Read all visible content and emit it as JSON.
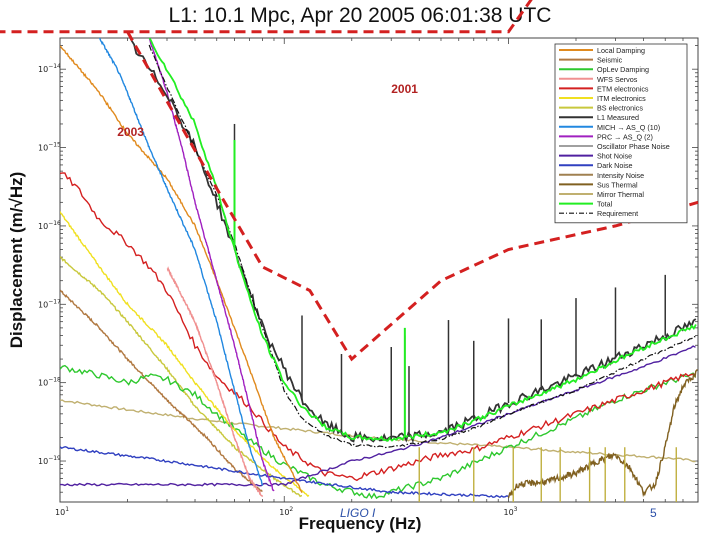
{
  "chart_data": {
    "type": "line",
    "title": "L1: 10.1 Mpc, Apr 20 2005 06:01:38 UTC",
    "xlabel": "Frequency (Hz)",
    "ylabel": "Displacement (m/√Hz)",
    "xscale": "log",
    "yscale": "log",
    "xlim": [
      10,
      7000
    ],
    "ylim": [
      3e-20,
      2.5e-14
    ],
    "x_ticks": [
      {
        "value": 10,
        "base": "10",
        "exp": "1"
      },
      {
        "value": 100,
        "base": "10",
        "exp": "2"
      },
      {
        "value": 1000,
        "base": "10",
        "exp": "3"
      }
    ],
    "y_ticks": [
      {
        "value": 1e-14,
        "base": "10",
        "exp": "−14"
      },
      {
        "value": 1e-15,
        "base": "10",
        "exp": "−15"
      },
      {
        "value": 1e-16,
        "base": "10",
        "exp": "−16"
      },
      {
        "value": 1e-17,
        "base": "10",
        "exp": "−17"
      },
      {
        "value": 1e-18,
        "base": "10",
        "exp": "−18"
      },
      {
        "value": 1e-19,
        "base": "10",
        "exp": "−19"
      }
    ],
    "legend_position": "top-right",
    "series": [
      {
        "name": "Local Damping",
        "color": "#e08a1e",
        "style": "solid",
        "points": [
          [
            10,
            2e-14
          ],
          [
            15,
            5e-15
          ],
          [
            20,
            1.5e-15
          ],
          [
            30,
            4e-16
          ],
          [
            40,
            1e-16
          ],
          [
            50,
            2e-17
          ],
          [
            60,
            5e-18
          ],
          [
            70,
            1.5e-18
          ],
          [
            90,
            2e-19
          ],
          [
            120,
            4e-20
          ]
        ]
      },
      {
        "name": "Seismic",
        "color": "#b07840",
        "style": "solid",
        "points": [
          [
            10,
            1.5e-17
          ],
          [
            15,
            5e-18
          ],
          [
            20,
            2e-18
          ],
          [
            30,
            6e-19
          ],
          [
            45,
            2e-19
          ],
          [
            60,
            8e-20
          ],
          [
            80,
            4e-20
          ]
        ]
      },
      {
        "name": "OpLev Damping",
        "color": "#2ec82e",
        "style": "solid",
        "points": [
          [
            10,
            1.6e-18
          ],
          [
            14,
            1.3e-18
          ],
          [
            20,
            1e-18
          ],
          [
            25,
            1.2e-18
          ],
          [
            30,
            1.1e-18
          ],
          [
            40,
            7e-19
          ],
          [
            50,
            4e-19
          ],
          [
            70,
            1.8e-19
          ],
          [
            100,
            9e-20
          ],
          [
            150,
            5e-20
          ],
          [
            250,
            3.5e-20
          ],
          [
            500,
            6e-20
          ],
          [
            1000,
            1.5e-19
          ],
          [
            2000,
            3.5e-19
          ],
          [
            3000,
            6e-19
          ],
          [
            5000,
            1e-18
          ],
          [
            7000,
            1.3e-18
          ]
        ]
      },
      {
        "name": "WFS Servos",
        "color": "#f09090",
        "style": "solid",
        "points": [
          [
            30,
            3e-17
          ],
          [
            40,
            6e-18
          ],
          [
            50,
            1e-18
          ],
          [
            60,
            2e-19
          ],
          [
            70,
            6e-20
          ],
          [
            80,
            3.5e-20
          ]
        ]
      },
      {
        "name": "ETM electronics",
        "color": "#d42020",
        "style": "solid",
        "points": [
          [
            10,
            5e-16
          ],
          [
            12,
            3e-16
          ],
          [
            15,
            1.2e-16
          ],
          [
            20,
            6e-17
          ],
          [
            25,
            3e-17
          ],
          [
            30,
            1.5e-17
          ],
          [
            40,
            3e-18
          ],
          [
            50,
            1.2e-18
          ],
          [
            70,
            5e-19
          ],
          [
            100,
            1.5e-19
          ],
          [
            150,
            7e-20
          ],
          [
            200,
            6e-20
          ],
          [
            300,
            8e-20
          ],
          [
            500,
            1.2e-19
          ],
          [
            700,
            1.4e-19
          ],
          [
            1000,
            2e-19
          ],
          [
            2000,
            4e-19
          ],
          [
            4000,
            8e-19
          ],
          [
            7000,
            1.4e-18
          ]
        ]
      },
      {
        "name": "ITM electronics",
        "color": "#f0e020",
        "style": "solid",
        "points": [
          [
            10,
            1.5e-16
          ],
          [
            15,
            3e-17
          ],
          [
            20,
            1e-17
          ],
          [
            30,
            3e-18
          ],
          [
            40,
            1e-18
          ],
          [
            60,
            2.5e-19
          ],
          [
            90,
            8e-20
          ],
          [
            130,
            3.5e-20
          ]
        ]
      },
      {
        "name": "BS electronics",
        "color": "#c8c83c",
        "style": "solid",
        "points": [
          [
            10,
            4e-17
          ],
          [
            15,
            1.5e-17
          ],
          [
            20,
            6e-18
          ],
          [
            30,
            1.5e-18
          ],
          [
            40,
            5e-19
          ],
          [
            60,
            1.5e-19
          ],
          [
            90,
            6e-20
          ],
          [
            120,
            3.5e-20
          ]
        ]
      },
      {
        "name": "L1 Measured",
        "color": "#333333",
        "style": "solid",
        "points": [
          [
            20,
            2.5e-14
          ],
          [
            25,
            1e-14
          ],
          [
            30,
            5e-15
          ],
          [
            40,
            1e-15
          ],
          [
            50,
            2e-16
          ],
          [
            60,
            5e-17
          ],
          [
            70,
            1.5e-17
          ],
          [
            80,
            5e-18
          ],
          [
            100,
            1.5e-18
          ],
          [
            120,
            6e-19
          ],
          [
            150,
            3e-19
          ],
          [
            200,
            2e-19
          ],
          [
            300,
            1.9e-19
          ],
          [
            500,
            2.3e-19
          ],
          [
            800,
            4e-19
          ],
          [
            1000,
            5.5e-19
          ],
          [
            2000,
            1.2e-18
          ],
          [
            4000,
            3e-18
          ],
          [
            7000,
            6e-18
          ]
        ]
      },
      {
        "name": "MICH → AS_Q (10)",
        "color": "#2288e0",
        "style": "solid",
        "points": [
          [
            15,
            2.5e-14
          ],
          [
            18,
            1e-14
          ],
          [
            20,
            5e-15
          ],
          [
            25,
            1e-15
          ],
          [
            30,
            3e-16
          ],
          [
            40,
            5e-17
          ],
          [
            50,
            6e-18
          ],
          [
            60,
            8e-19
          ],
          [
            70,
            1.5e-19
          ],
          [
            80,
            5e-20
          ]
        ]
      },
      {
        "name": "PRC → AS_Q (2)",
        "color": "#a020c0",
        "style": "solid",
        "points": [
          [
            25,
            2.5e-14
          ],
          [
            30,
            5e-15
          ],
          [
            35,
            1e-15
          ],
          [
            40,
            2e-16
          ],
          [
            50,
            2e-17
          ],
          [
            60,
            3e-18
          ],
          [
            70,
            5e-19
          ],
          [
            80,
            1e-19
          ],
          [
            90,
            4e-20
          ]
        ]
      },
      {
        "name": "Shot Noise",
        "color": "#5020a0",
        "style": "solid",
        "points": [
          [
            10,
            5e-20
          ],
          [
            50,
            5e-20
          ],
          [
            100,
            5e-20
          ],
          [
            200,
            1e-19
          ],
          [
            300,
            1.3e-19
          ],
          [
            500,
            2e-19
          ],
          [
            1000,
            4e-19
          ],
          [
            2000,
            8e-19
          ],
          [
            4000,
            1.6e-18
          ],
          [
            7000,
            3e-18
          ]
        ]
      },
      {
        "name": "Dark Noise",
        "color": "#3040c0",
        "style": "solid",
        "points": [
          [
            10,
            1.5e-19
          ],
          [
            30,
            1e-19
          ],
          [
            100,
            6e-20
          ],
          [
            300,
            4e-20
          ],
          [
            1000,
            3.5e-20
          ]
        ]
      },
      {
        "name": "Sus Thermal",
        "color": "#806020",
        "style": "solid",
        "points": [
          [
            1000,
            3.5e-20
          ],
          [
            1100,
            5e-20
          ],
          [
            1500,
            5.5e-20
          ],
          [
            2000,
            7e-20
          ],
          [
            2500,
            1e-19
          ],
          [
            3000,
            1.2e-19
          ],
          [
            3500,
            8e-20
          ],
          [
            4000,
            4e-20
          ],
          [
            4500,
            5e-20
          ],
          [
            5000,
            1.5e-19
          ],
          [
            5500,
            5e-19
          ],
          [
            6000,
            9e-19
          ],
          [
            7000,
            1.4e-18
          ]
        ]
      },
      {
        "name": "Mirror Thermal",
        "color": "#c0b070",
        "style": "solid",
        "points": [
          [
            10,
            6e-19
          ],
          [
            20,
            4.5e-19
          ],
          [
            50,
            3.2e-19
          ],
          [
            100,
            2.6e-19
          ],
          [
            200,
            2.1e-19
          ],
          [
            500,
            1.7e-19
          ],
          [
            1000,
            1.5e-19
          ],
          [
            2000,
            1.3e-19
          ],
          [
            5000,
            1.1e-19
          ],
          [
            7000,
            1e-19
          ]
        ]
      },
      {
        "name": "Total",
        "color": "#22ee22",
        "style": "solid",
        "points": [
          [
            25,
            2.5e-14
          ],
          [
            30,
            1e-14
          ],
          [
            40,
            2e-15
          ],
          [
            50,
            3e-16
          ],
          [
            60,
            5e-17
          ],
          [
            70,
            1.2e-17
          ],
          [
            80,
            4e-18
          ],
          [
            100,
            1e-18
          ],
          [
            120,
            5e-19
          ],
          [
            150,
            2.8e-19
          ],
          [
            200,
            2e-19
          ],
          [
            300,
            1.9e-19
          ],
          [
            500,
            2.3e-19
          ],
          [
            800,
            3.8e-19
          ],
          [
            1000,
            5e-19
          ],
          [
            2000,
            1.1e-18
          ],
          [
            4000,
            2.8e-18
          ],
          [
            7000,
            5.5e-18
          ]
        ]
      },
      {
        "name": "Requirement",
        "color": "#111111",
        "style": "dashdot",
        "points": [
          [
            25,
            2e-14
          ],
          [
            30,
            6e-15
          ],
          [
            40,
            1e-15
          ],
          [
            50,
            2.5e-16
          ],
          [
            60,
            6e-17
          ],
          [
            70,
            1.5e-17
          ],
          [
            80,
            5e-18
          ],
          [
            100,
            8e-19
          ],
          [
            120,
            3.5e-19
          ],
          [
            150,
            2.2e-19
          ],
          [
            200,
            1.6e-19
          ],
          [
            300,
            1.5e-19
          ],
          [
            500,
            1.9e-19
          ],
          [
            800,
            3e-19
          ],
          [
            1000,
            4e-19
          ],
          [
            2000,
            8e-19
          ],
          [
            4000,
            2e-18
          ],
          [
            7000,
            4e-18
          ]
        ]
      }
    ],
    "legend_extra_entries": [
      {
        "name": "Oscillator Phase Noise",
        "color": "#a0a0a0"
      },
      {
        "name": "Intensity Noise",
        "color": "#a08050"
      }
    ],
    "legend_order": [
      "Local Damping",
      "Seismic",
      "OpLev Damping",
      "WFS Servos",
      "ETM electronics",
      "ITM electronics",
      "BS electronics",
      "L1 Measured",
      "MICH → AS_Q (10)",
      "PRC → AS_Q (2)",
      "Oscillator Phase Noise",
      "Shot Noise",
      "Dark Noise",
      "Intensity Noise",
      "Sus Thermal",
      "Mirror Thermal",
      "Total",
      "Requirement"
    ],
    "spectral_lines_hz": [
      60,
      120,
      180,
      300,
      345,
      360,
      540,
      700,
      1000,
      1400,
      2000,
      3000,
      5000
    ],
    "envelopes": [
      {
        "label": "2001",
        "points": [
          [
            0.1,
            3e-14
          ],
          [
            1000,
            3e-14
          ],
          [
            2000,
            5e-13
          ],
          [
            10000,
            5e-13
          ]
        ]
      },
      {
        "label": "2003",
        "points": [
          [
            20,
            3e-14
          ],
          [
            50,
            3e-16
          ],
          [
            80,
            3e-17
          ],
          [
            130,
            1.5e-17
          ],
          [
            200,
            2e-18
          ],
          [
            500,
            2e-17
          ],
          [
            1000,
            5e-17
          ],
          [
            3000,
            1e-16
          ],
          [
            7000,
            2e-16
          ]
        ]
      }
    ]
  },
  "footer": {
    "label": "LIGO I",
    "page_number": "5"
  }
}
